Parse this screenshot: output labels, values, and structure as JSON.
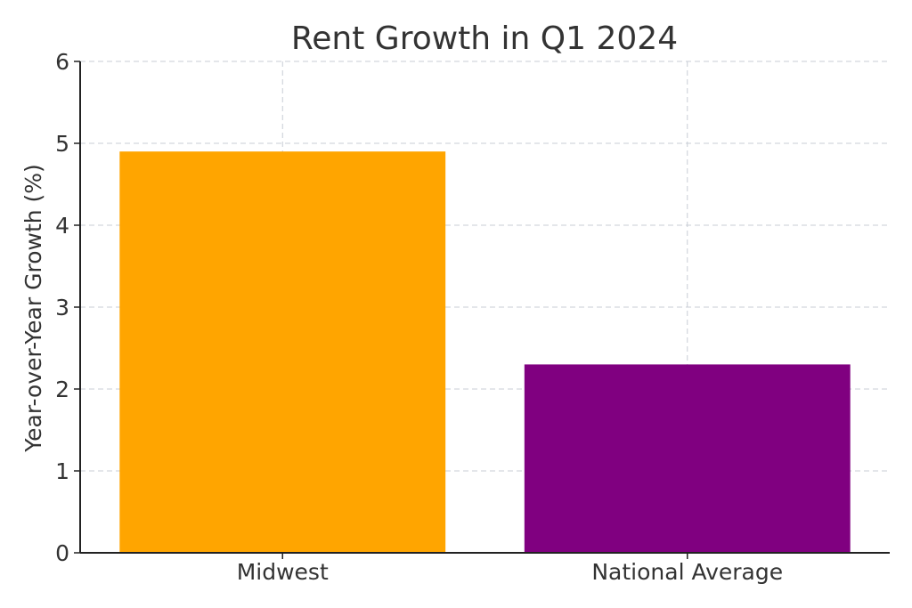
{
  "chart_data": {
    "type": "bar",
    "title": "Rent Growth in Q1 2024",
    "xlabel": "",
    "ylabel": "Year-over-Year Growth (%)",
    "categories": [
      "Midwest",
      "National Average"
    ],
    "values": [
      4.9,
      2.3
    ],
    "colors": [
      "#ffa500",
      "#800080"
    ],
    "ylim": [
      0,
      6
    ],
    "yticks": [
      0,
      1,
      2,
      3,
      4,
      5,
      6
    ],
    "grid": true,
    "legend": "none"
  }
}
